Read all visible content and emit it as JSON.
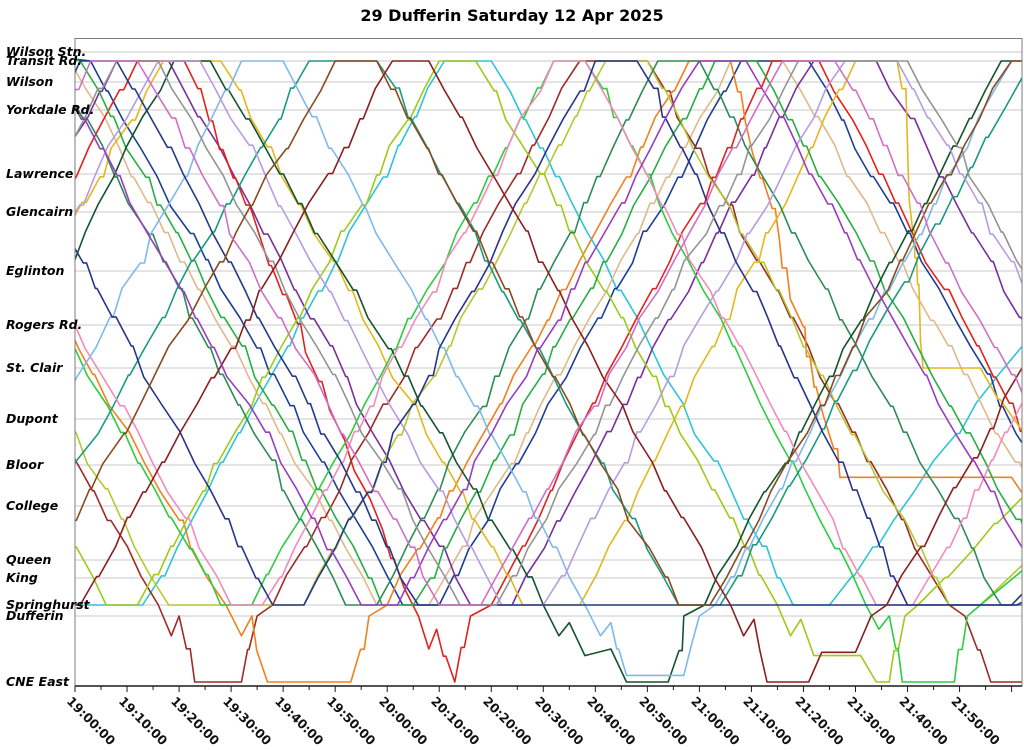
{
  "page": {
    "title": "29 Dufferin Saturday 12 Apr 2025"
  },
  "chart_data": {
    "type": "line",
    "title": "29 Dufferin Saturday 12 Apr 2025",
    "description": "Marey time-distance diagram of bus runs on route 29 Dufferin; x = time of day, y = stop along route from Wilson Stn. (top) to CNE East (bottom); each coloured line is one vehicle run.",
    "legend": "none",
    "grid": "horizontal-only",
    "colors": {
      "background": "#ffffff",
      "grid": "#c9c9c9",
      "border": "#7d7d7d",
      "axis": "#1a1a1a",
      "text": "#000000"
    },
    "x_axis": {
      "t_min_minutes": 0,
      "t_max_minutes": 182,
      "start_time": "19:00:00",
      "minor_tick_minutes": 5,
      "major_tick_minutes": 10,
      "tick_labels": [
        "19:00:00",
        "19:10:00",
        "19:20:00",
        "19:30:00",
        "19:40:00",
        "19:50:00",
        "20:00:00",
        "20:10:00",
        "20:20:00",
        "20:30:00",
        "20:40:00",
        "20:50:00",
        "21:00:00",
        "21:10:00",
        "21:20:00",
        "21:30:00",
        "21:40:00",
        "21:50:00"
      ]
    },
    "y_axis": {
      "stations": [
        {
          "name": "Wilson Stn.",
          "pos": 0.0209,
          "grid": true
        },
        {
          "name": "Transit Rd.",
          "pos": 0.0347,
          "grid": true
        },
        {
          "name": "Wilson",
          "pos": 0.0672,
          "grid": true
        },
        {
          "name": "Yorkdale Rd.",
          "pos": 0.1104,
          "grid": true
        },
        {
          "name": "Lawrence",
          "pos": 0.2093,
          "grid": true
        },
        {
          "name": "Glencairn",
          "pos": 0.268,
          "grid": true
        },
        {
          "name": "Eglinton",
          "pos": 0.3591,
          "grid": true
        },
        {
          "name": "Rogers Rd.",
          "pos": 0.4425,
          "grid": true
        },
        {
          "name": "St. Clair",
          "pos": 0.5089,
          "grid": true
        },
        {
          "name": "Dupont",
          "pos": 0.5876,
          "grid": true
        },
        {
          "name": "Bloor",
          "pos": 0.6587,
          "grid": true
        },
        {
          "name": "College",
          "pos": 0.722,
          "grid": true
        },
        {
          "name": "Queen",
          "pos": 0.8054,
          "grid": true
        },
        {
          "name": "King",
          "pos": 0.8332,
          "grid": true
        },
        {
          "name": "Springhurst",
          "pos": 0.8749,
          "grid": true
        },
        {
          "name": "Dufferin",
          "pos": 0.8919,
          "grid": true
        },
        {
          "name": "CNE East",
          "pos": 0.9938,
          "grid": false
        }
      ]
    },
    "runs": [
      {
        "id": "run-01",
        "color": "#2ec4d8",
        "waypoints": [
          [
            -47,
            1
          ],
          [
            0,
            14
          ],
          [
            13,
            14
          ],
          [
            71,
            1
          ],
          [
            80,
            1
          ],
          [
            138,
            14
          ],
          [
            145,
            14
          ],
          [
            182,
            7.5
          ]
        ]
      },
      {
        "id": "run-02",
        "color": "#dfb98a",
        "waypoints": [
          [
            -6,
            0
          ],
          [
            -1,
            1
          ],
          [
            58,
            14
          ],
          [
            68,
            14
          ],
          [
            126,
            1
          ],
          [
            136,
            1
          ],
          [
            196,
            14
          ]
        ]
      },
      {
        "id": "run-03",
        "color": "#1c3f94",
        "waypoints": [
          [
            -12,
            0
          ],
          [
            3,
            1
          ],
          [
            63,
            14
          ],
          [
            70,
            14
          ],
          [
            128,
            1
          ],
          [
            141,
            1
          ],
          [
            200,
            14
          ]
        ]
      },
      {
        "id": "run-04",
        "color": "#7a2f9e",
        "waypoints": [
          [
            -48,
            14
          ],
          [
            8,
            1
          ],
          [
            18,
            1
          ],
          [
            76,
            14
          ],
          [
            84,
            14
          ],
          [
            142,
            1
          ],
          [
            154,
            1
          ],
          [
            213,
            14
          ]
        ]
      },
      {
        "id": "run-05",
        "color": "#e4211c",
        "waypoints": [
          [
            -46,
            14
          ],
          [
            12,
            1
          ],
          [
            21,
            1
          ],
          [
            66,
            15
          ],
          [
            68,
            15.5
          ],
          [
            69.5,
            15.2
          ],
          [
            73,
            16
          ],
          [
            76,
            15
          ],
          [
            80,
            14
          ],
          [
            134,
            1
          ],
          [
            143,
            1
          ],
          [
            200,
            14
          ]
        ]
      },
      {
        "id": "run-06",
        "color": "#9e2b25",
        "waypoints": [
          [
            -44,
            1
          ],
          [
            16,
            14
          ],
          [
            18.5,
            15.3
          ],
          [
            20,
            15
          ],
          [
            23,
            16
          ],
          [
            32,
            16
          ],
          [
            35,
            15
          ],
          [
            38,
            14
          ],
          [
            97,
            1
          ],
          [
            110,
            1
          ],
          [
            168,
            14
          ],
          [
            171,
            15
          ],
          [
            176,
            16
          ],
          [
            196,
            16
          ]
        ]
      },
      {
        "id": "run-07",
        "color": "#f2801e",
        "waypoints": [
          [
            -31,
            1
          ],
          [
            29,
            14
          ],
          [
            32,
            15.3
          ],
          [
            34,
            15
          ],
          [
            37,
            16
          ],
          [
            53,
            16
          ],
          [
            56.5,
            15
          ],
          [
            60,
            14
          ],
          [
            118,
            1
          ],
          [
            126,
            1
          ],
          [
            147,
            10.3
          ],
          [
            180,
            10.3
          ],
          [
            195,
            14
          ]
        ]
      },
      {
        "id": "run-08",
        "color": "#e3b71d",
        "waypoints": [
          [
            -43,
            14
          ],
          [
            17,
            1
          ],
          [
            28,
            1
          ],
          [
            86,
            14
          ],
          [
            97,
            14
          ],
          [
            150,
            1
          ],
          [
            158,
            1
          ],
          [
            163,
            8
          ],
          [
            174,
            8
          ],
          [
            205,
            14
          ]
        ]
      },
      {
        "id": "run-09",
        "color": "#b4c832",
        "waypoints": [
          [
            -40,
            1
          ],
          [
            18,
            14
          ],
          [
            44,
            14
          ],
          [
            102,
            1
          ],
          [
            110,
            1
          ],
          [
            168,
            14
          ],
          [
            174,
            14
          ],
          [
            182,
            12.3
          ]
        ]
      },
      {
        "id": "run-10",
        "color": "#9ccb19",
        "waypoints": [
          [
            -52,
            1
          ],
          [
            6,
            14
          ],
          [
            12,
            14
          ],
          [
            70,
            1
          ],
          [
            77,
            1
          ],
          [
            135,
            14
          ],
          [
            137.5,
            15.3
          ],
          [
            139.5,
            15.05
          ],
          [
            142,
            15.6
          ],
          [
            151,
            15.6
          ],
          [
            154,
            16
          ],
          [
            156.5,
            16
          ],
          [
            159.5,
            15
          ],
          [
            162,
            14
          ],
          [
            182,
            10.8
          ]
        ]
      },
      {
        "id": "run-11",
        "color": "#2ecc40",
        "waypoints": [
          [
            -32,
            1
          ],
          [
            28,
            14
          ],
          [
            34,
            14
          ],
          [
            92,
            1
          ],
          [
            98,
            1
          ],
          [
            152,
            14
          ],
          [
            154.5,
            15.2
          ],
          [
            156.5,
            15
          ],
          [
            159,
            16
          ],
          [
            169,
            16
          ],
          [
            171.5,
            15
          ],
          [
            174,
            14
          ],
          [
            182,
            12.6
          ]
        ]
      },
      {
        "id": "run-12",
        "color": "#27ae45",
        "waypoints": [
          [
            -5,
            0
          ],
          [
            1,
            1
          ],
          [
            59,
            14
          ],
          [
            65,
            14
          ],
          [
            123,
            1
          ],
          [
            131,
            1
          ],
          [
            190,
            14
          ]
        ]
      },
      {
        "id": "run-13",
        "color": "#199b82",
        "waypoints": [
          [
            -15,
            14
          ],
          [
            45,
            1
          ],
          [
            58,
            1
          ],
          [
            116,
            14
          ],
          [
            124,
            14
          ],
          [
            182,
            1.8
          ]
        ]
      },
      {
        "id": "run-14",
        "color": "#2e8b57",
        "waypoints": [
          [
            -9,
            0
          ],
          [
            -4,
            1
          ],
          [
            52,
            14
          ],
          [
            58,
            14
          ],
          [
            112,
            1
          ],
          [
            120,
            1
          ],
          [
            178,
            14
          ],
          [
            186,
            14
          ]
        ]
      },
      {
        "id": "run-15",
        "color": "#14532d",
        "waypoints": [
          [
            -35,
            14
          ],
          [
            19,
            1
          ],
          [
            26,
            1
          ],
          [
            90,
            14
          ],
          [
            93,
            15.3
          ],
          [
            95,
            15.1
          ],
          [
            98,
            15.6
          ],
          [
            103,
            15.5
          ],
          [
            106,
            16
          ],
          [
            114,
            16
          ],
          [
            117,
            15
          ],
          [
            121,
            14
          ],
          [
            178,
            1
          ],
          [
            188,
            1
          ]
        ]
      },
      {
        "id": "run-16",
        "color": "#7fb9ea",
        "waypoints": [
          [
            -22,
            14
          ],
          [
            32,
            1
          ],
          [
            40,
            1
          ],
          [
            98,
            14
          ],
          [
            101,
            15.3
          ],
          [
            103,
            15.1
          ],
          [
            106,
            15.9
          ],
          [
            117,
            15.9
          ],
          [
            120,
            15
          ],
          [
            123,
            14
          ],
          [
            180,
            1
          ],
          [
            192,
            1
          ]
        ]
      },
      {
        "id": "run-17",
        "color": "#f28bbb",
        "waypoints": [
          [
            -28,
            1
          ],
          [
            30,
            14
          ],
          [
            36,
            14
          ],
          [
            92,
            1
          ],
          [
            98,
            1
          ],
          [
            154,
            14
          ],
          [
            161,
            14
          ],
          [
            219,
            1
          ]
        ]
      },
      {
        "id": "run-18",
        "color": "#b79ce0",
        "waypoints": [
          [
            -42,
            14
          ],
          [
            16,
            1
          ],
          [
            24,
            1
          ],
          [
            82,
            14
          ],
          [
            90,
            14
          ],
          [
            148,
            1
          ],
          [
            158,
            1
          ],
          [
            216,
            14
          ]
        ]
      },
      {
        "id": "run-19",
        "color": "#27348b",
        "waypoints": [
          [
            -20,
            1
          ],
          [
            38,
            14
          ],
          [
            44,
            14
          ],
          [
            100,
            1
          ],
          [
            108,
            1
          ],
          [
            160,
            14
          ],
          [
            181,
            14
          ],
          [
            183,
            13.8
          ]
        ]
      },
      {
        "id": "run-20",
        "color": "#243a85",
        "waypoints": [
          [
            -55,
            14
          ],
          [
            1,
            1
          ],
          [
            8,
            1
          ],
          [
            66,
            14
          ],
          [
            180,
            14
          ],
          [
            182,
            13.6
          ]
        ]
      },
      {
        "id": "run-21",
        "color": "#949494",
        "waypoints": [
          [
            -50,
            14
          ],
          [
            8,
            1
          ],
          [
            16,
            1
          ],
          [
            74,
            14
          ],
          [
            81,
            14
          ],
          [
            139,
            1
          ],
          [
            160,
            1
          ],
          [
            218,
            14
          ]
        ]
      },
      {
        "id": "run-22",
        "color": "#8a4a20",
        "waypoints": [
          [
            -10,
            14
          ],
          [
            50,
            1
          ],
          [
            58,
            1
          ],
          [
            116,
            14
          ],
          [
            122,
            14
          ],
          [
            180,
            1
          ],
          [
            192,
            1
          ]
        ]
      },
      {
        "id": "run-23",
        "color": "#8b1e1e",
        "waypoints": [
          [
            -66,
            1
          ],
          [
            -6,
            14
          ],
          [
            1,
            14
          ],
          [
            61,
            1
          ],
          [
            68,
            1
          ],
          [
            126,
            14
          ],
          [
            128.5,
            15.3
          ],
          [
            130.5,
            15.05
          ],
          [
            133,
            16
          ],
          [
            141,
            16
          ],
          [
            143.5,
            15.55
          ],
          [
            150,
            15.55
          ],
          [
            153,
            15
          ],
          [
            156,
            14
          ],
          [
            182,
            8
          ]
        ]
      },
      {
        "id": "run-24",
        "color": "#993dbd",
        "waypoints": [
          [
            -5,
            1
          ],
          [
            55,
            14
          ],
          [
            62,
            14
          ],
          [
            120,
            1
          ],
          [
            129,
            1
          ],
          [
            188,
            14
          ]
        ]
      },
      {
        "id": "run-25",
        "color": "#cf6fc7",
        "waypoints": [
          [
            -54,
            14
          ],
          [
            3,
            1
          ],
          [
            12,
            1
          ],
          [
            70,
            14
          ],
          [
            78,
            14
          ],
          [
            136,
            1
          ],
          [
            146,
            1
          ],
          [
            205,
            14
          ]
        ]
      }
    ]
  }
}
